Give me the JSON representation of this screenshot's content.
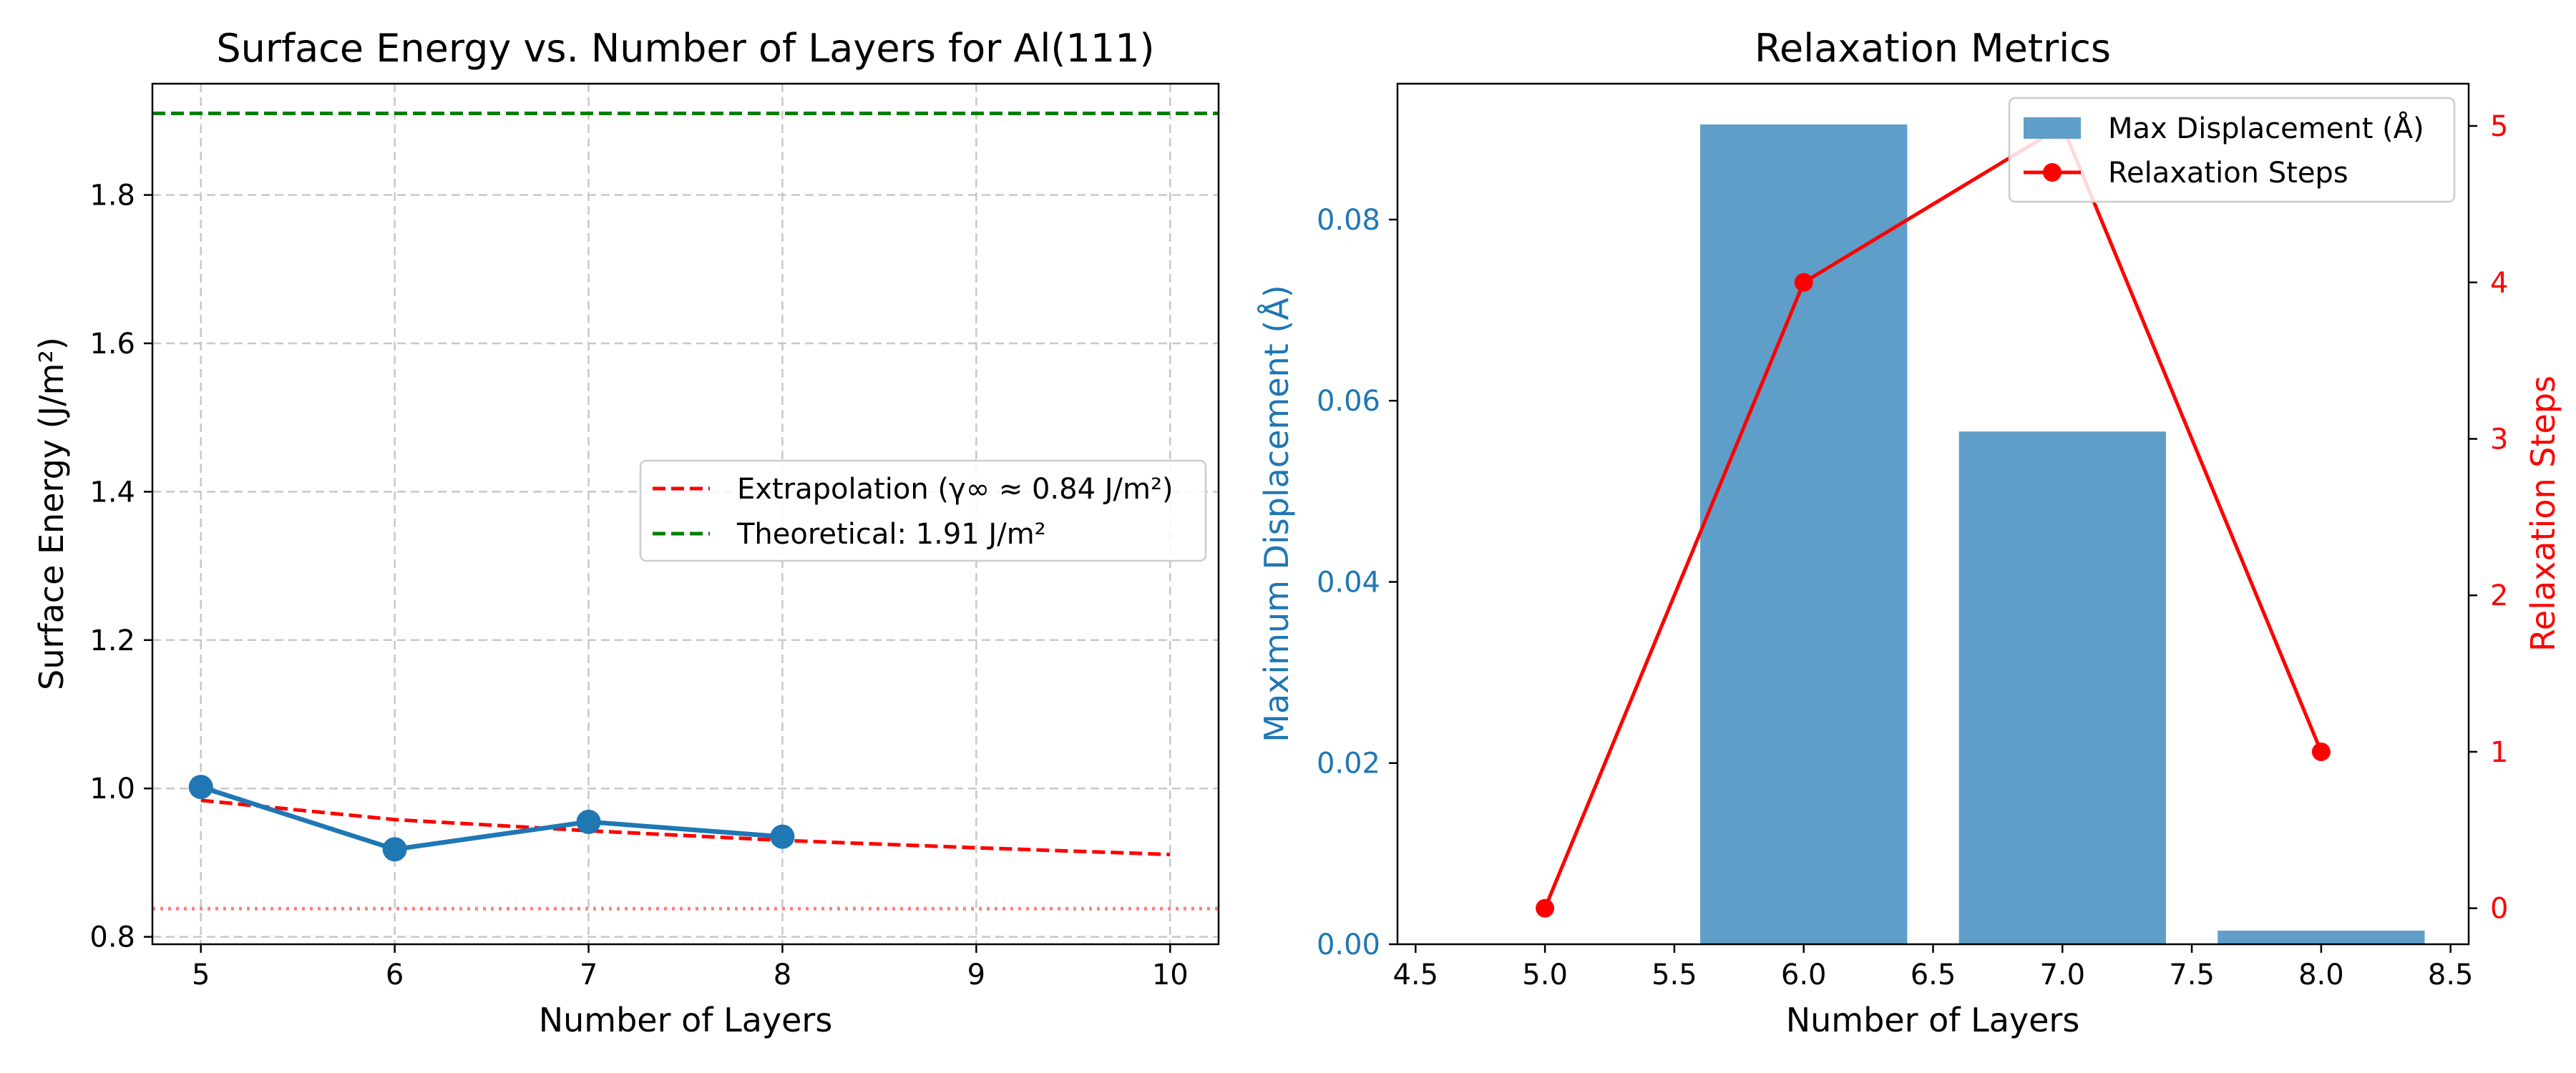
{
  "chart_data": [
    {
      "type": "line",
      "title": "Surface Energy vs. Number of Layers for Al(111)",
      "xlabel": "Number of Layers",
      "ylabel": "Surface Energy (J/m²)",
      "xlim": [
        4.75,
        10.25
      ],
      "ylim": [
        0.79,
        1.95
      ],
      "xticks": [
        5,
        6,
        7,
        8,
        9,
        10
      ],
      "yticks": [
        0.8,
        1.0,
        1.2,
        1.4,
        1.6,
        1.8
      ],
      "grid": true,
      "legend_position": "center-right",
      "series": [
        {
          "x": [
            5,
            6,
            7,
            8
          ],
          "y": [
            1.002,
            0.918,
            0.955,
            0.935
          ],
          "color": "#1f77b4",
          "style": "solid",
          "marker": "circle"
        },
        {
          "name": "Extrapolation (γ∞ ≈ 0.84 J/m²)",
          "x": [
            5,
            6,
            7,
            8,
            9,
            10
          ],
          "y": [
            0.984,
            0.958,
            0.943,
            0.93,
            0.92,
            0.911
          ],
          "color": "#ff0000",
          "style": "dashed"
        },
        {
          "name": "Theoretical: 1.91 J/m²",
          "hline": 1.91,
          "color": "#008000",
          "style": "dashed"
        },
        {
          "hline": 0.838,
          "color": "#ff8080",
          "style": "dotted"
        }
      ]
    },
    {
      "type": "bar",
      "title": "Relaxation Metrics",
      "xlabel": "Number of Layers",
      "ylabel": "Maximum Displacement (Å)",
      "y2label": "Relaxation Steps",
      "xlim": [
        4.43,
        8.57
      ],
      "ylim": [
        0,
        0.095
      ],
      "y2lim": [
        -0.23,
        5.27
      ],
      "xticks": [
        4.5,
        5.0,
        5.5,
        6.0,
        6.5,
        7.0,
        7.5,
        8.0,
        8.5
      ],
      "yticks": [
        0.0,
        0.02,
        0.04,
        0.06,
        0.08
      ],
      "y2ticks": [
        0,
        1,
        2,
        3,
        4,
        5
      ],
      "grid": false,
      "legend_position": "top-right",
      "series": [
        {
          "name": "Max Displacement (Å)",
          "type": "bar",
          "axis": "left",
          "x": [
            5,
            6,
            7,
            8
          ],
          "values": [
            0.0,
            0.0905,
            0.0566,
            0.0015
          ],
          "bar_width": 0.8,
          "color": "#5f9ec9"
        },
        {
          "name": "Relaxation Steps",
          "type": "line",
          "axis": "right",
          "x": [
            5,
            6,
            7,
            8
          ],
          "values": [
            0,
            4,
            5,
            1
          ],
          "color": "#ff0000",
          "marker": "circle"
        }
      ],
      "colors": {
        "left_axis": "#1f77b4",
        "right_axis": "#ff0000"
      }
    }
  ]
}
